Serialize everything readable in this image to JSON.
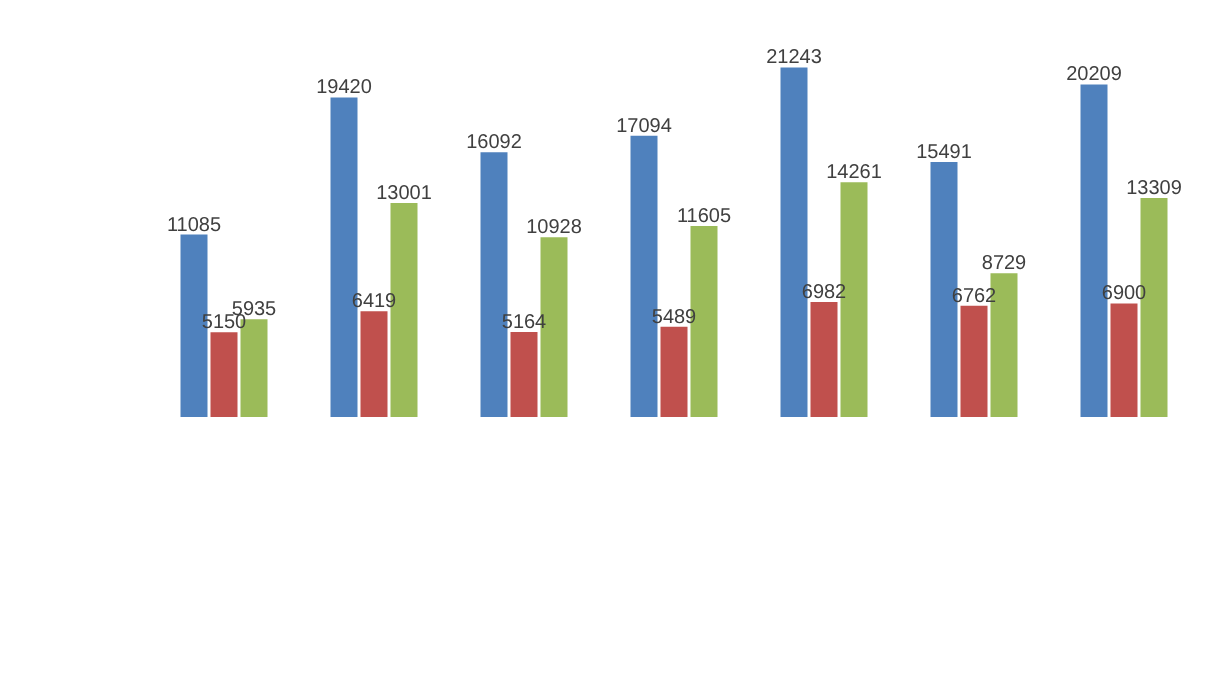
{
  "chart_data": {
    "type": "bar",
    "categories": [
      null,
      null,
      null,
      null,
      null,
      null,
      null
    ],
    "series": [
      {
        "color": "#4f81bd",
        "values": [
          11085,
          19420,
          16092,
          17094,
          21243,
          15491,
          20209
        ]
      },
      {
        "color": "#c0504d",
        "values": [
          5150,
          6419,
          5164,
          5489,
          6982,
          6762,
          6900
        ]
      },
      {
        "color": "#9bbb59",
        "values": [
          5935,
          13001,
          10928,
          11605,
          14261,
          8729,
          13309
        ]
      }
    ],
    "data_labels": true,
    "grid": false,
    "tick_labels": false
  }
}
